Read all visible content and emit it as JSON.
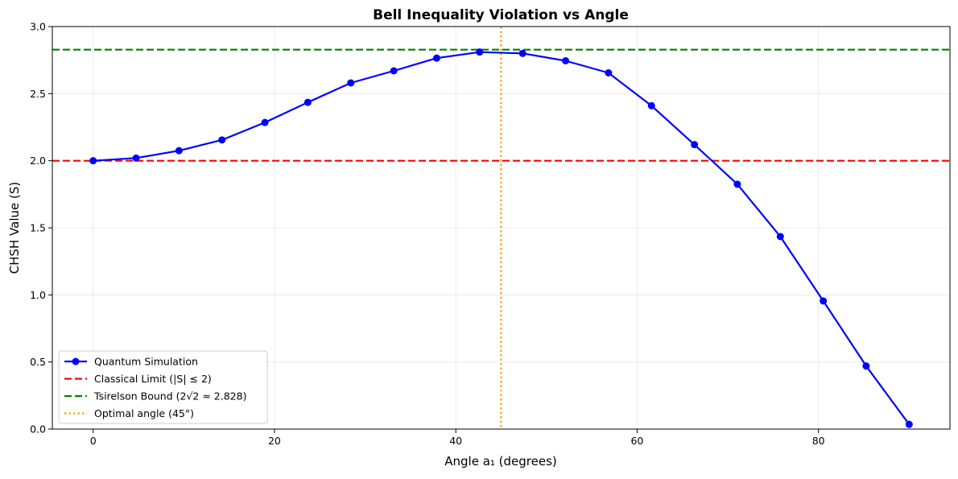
{
  "chart_data": {
    "type": "line",
    "title": "Bell Inequality Violation vs Angle",
    "xlabel": "Angle a₁ (degrees)",
    "ylabel": "CHSH Value (S)",
    "xlim": [
      -4.5,
      94.5
    ],
    "ylim": [
      0,
      3
    ],
    "xticks": [
      0,
      20,
      40,
      60,
      80
    ],
    "yticks": [
      0.0,
      0.5,
      1.0,
      1.5,
      2.0,
      2.5,
      3.0
    ],
    "xtick_labels": [
      "0",
      "20",
      "40",
      "60",
      "80"
    ],
    "ytick_labels": [
      "0.0",
      "0.5",
      "1.0",
      "1.5",
      "2.0",
      "2.5",
      "3.0"
    ],
    "grid": true,
    "legend_position": "lower-left",
    "series": [
      {
        "name": "Quantum Simulation",
        "color": "#0000ff",
        "marker": "circle",
        "x": [
          0,
          4.74,
          9.47,
          14.21,
          18.95,
          23.68,
          28.42,
          33.16,
          37.89,
          42.63,
          47.37,
          52.11,
          56.84,
          61.58,
          66.32,
          71.05,
          75.79,
          80.53,
          85.26,
          90
        ],
        "y": [
          2.0,
          2.02,
          2.075,
          2.155,
          2.285,
          2.435,
          2.58,
          2.67,
          2.765,
          2.81,
          2.8,
          2.745,
          2.655,
          2.41,
          2.12,
          1.825,
          1.435,
          0.955,
          0.47,
          0.035
        ]
      }
    ],
    "reference_lines": [
      {
        "name": "Classical Limit (|S| ≤ 2)",
        "orientation": "horizontal",
        "value": 2.0,
        "color": "#ff0000",
        "style": "dashed"
      },
      {
        "name": "Tsirelson Bound (2√2 ≈ 2.828)",
        "orientation": "horizontal",
        "value": 2.828,
        "color": "#008000",
        "style": "dashed"
      },
      {
        "name": "Optimal angle (45°)",
        "orientation": "vertical",
        "value": 45,
        "color": "#ffa500",
        "style": "dotted"
      }
    ]
  }
}
